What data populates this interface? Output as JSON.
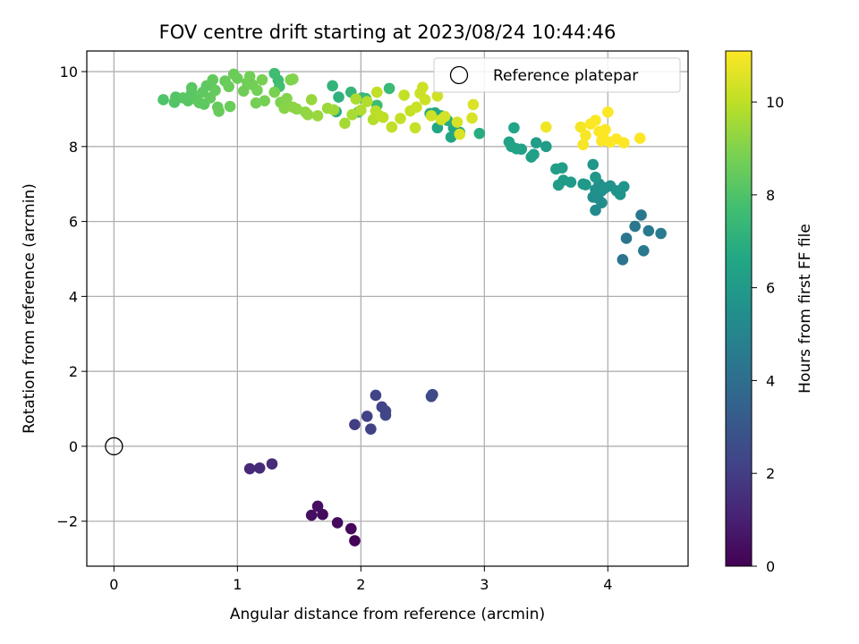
{
  "chart_data": {
    "type": "scatter",
    "title": "FOV centre drift starting at 2023/08/24 10:44:46",
    "xlabel": "Angular distance from reference (arcmin)",
    "ylabel": "Rotation from reference (arcmin)",
    "xlim": [
      -0.22,
      4.65
    ],
    "ylim": [
      -3.2,
      10.55
    ],
    "x_ticks": [
      0,
      1,
      2,
      3,
      4
    ],
    "y_ticks": [
      -2,
      0,
      2,
      4,
      6,
      8,
      10
    ],
    "x_tick_labels": [
      "0",
      "1",
      "2",
      "3",
      "4"
    ],
    "y_tick_labels": [
      "−2",
      "0",
      "2",
      "4",
      "6",
      "8",
      "10"
    ],
    "grid": true,
    "legend": {
      "position": "top-right",
      "entries": [
        "Reference platepar"
      ]
    },
    "reference_point": {
      "x": 0,
      "y": 0
    },
    "colorbar": {
      "label": "Hours from first FF file",
      "colormap": "viridis",
      "range": [
        0,
        11.1
      ],
      "ticks": [
        0,
        2,
        4,
        6,
        8,
        10
      ],
      "tick_labels": [
        "0",
        "2",
        "4",
        "6",
        "8",
        "10"
      ]
    },
    "points": [
      [
        1.95,
        -2.52,
        0.1
      ],
      [
        1.92,
        -2.2,
        0.2
      ],
      [
        1.81,
        -2.04,
        0.3
      ],
      [
        1.69,
        -1.82,
        0.35
      ],
      [
        1.6,
        -1.84,
        0.4
      ],
      [
        1.65,
        -1.6,
        0.45
      ],
      [
        1.1,
        -0.6,
        1.3
      ],
      [
        1.18,
        -0.58,
        1.35
      ],
      [
        1.28,
        -0.47,
        1.4
      ],
      [
        1.95,
        0.58,
        2.0
      ],
      [
        2.05,
        0.8,
        2.1
      ],
      [
        2.08,
        0.46,
        2.15
      ],
      [
        2.12,
        1.36,
        2.2
      ],
      [
        2.17,
        1.05,
        2.25
      ],
      [
        2.2,
        0.94,
        2.3
      ],
      [
        2.2,
        0.83,
        2.35
      ],
      [
        2.57,
        1.33,
        2.4
      ],
      [
        2.58,
        1.38,
        2.45
      ],
      [
        4.12,
        4.98,
        4.2
      ],
      [
        4.15,
        5.55,
        4.3
      ],
      [
        4.22,
        5.87,
        4.4
      ],
      [
        4.27,
        6.17,
        4.45
      ],
      [
        4.29,
        5.22,
        4.5
      ],
      [
        4.33,
        5.75,
        4.55
      ],
      [
        4.43,
        5.68,
        4.6
      ],
      [
        3.9,
        6.3,
        5.3
      ],
      [
        3.92,
        6.62,
        5.35
      ],
      [
        3.95,
        6.5,
        5.4
      ],
      [
        3.88,
        6.65,
        5.45
      ],
      [
        3.9,
        6.85,
        5.5
      ],
      [
        3.93,
        7.0,
        5.5
      ],
      [
        3.95,
        6.82,
        5.55
      ],
      [
        3.98,
        6.9,
        5.6
      ],
      [
        4.02,
        6.95,
        5.6
      ],
      [
        4.07,
        6.82,
        5.65
      ],
      [
        4.1,
        6.72,
        5.7
      ],
      [
        4.13,
        6.93,
        5.75
      ],
      [
        3.88,
        7.52,
        5.8
      ],
      [
        3.9,
        7.18,
        5.85
      ],
      [
        3.8,
        7.0,
        5.9
      ],
      [
        3.82,
        6.98,
        5.95
      ],
      [
        3.7,
        7.05,
        6.0
      ],
      [
        3.64,
        7.1,
        6.05
      ],
      [
        3.6,
        6.97,
        6.1
      ],
      [
        3.63,
        7.43,
        6.15
      ],
      [
        3.58,
        7.4,
        6.2
      ],
      [
        3.5,
        8.0,
        6.1
      ],
      [
        3.42,
        8.1,
        6.15
      ],
      [
        3.38,
        7.72,
        6.2
      ],
      [
        3.4,
        7.79,
        6.25
      ],
      [
        3.3,
        7.93,
        6.3
      ],
      [
        3.26,
        7.94,
        6.35
      ],
      [
        3.22,
        8.0,
        6.35
      ],
      [
        3.2,
        8.12,
        6.4
      ],
      [
        3.24,
        8.5,
        6.45
      ],
      [
        2.73,
        8.25,
        6.5
      ],
      [
        2.75,
        8.5,
        6.55
      ],
      [
        2.8,
        8.38,
        6.6
      ],
      [
        2.62,
        8.5,
        6.6
      ],
      [
        2.65,
        8.82,
        6.65
      ],
      [
        2.6,
        8.9,
        6.7
      ],
      [
        2.7,
        8.7,
        6.75
      ],
      [
        2.56,
        8.88,
        6.8
      ],
      [
        2.96,
        8.35,
        6.85
      ],
      [
        1.8,
        8.93,
        7.0
      ],
      [
        1.82,
        9.32,
        7.1
      ],
      [
        1.77,
        9.62,
        7.2
      ],
      [
        1.92,
        9.45,
        7.3
      ],
      [
        2.01,
        9.3,
        7.4
      ],
      [
        2.04,
        9.28,
        7.45
      ],
      [
        1.98,
        8.92,
        7.5
      ],
      [
        2.23,
        9.55,
        7.5
      ],
      [
        2.13,
        9.1,
        7.55
      ],
      [
        1.33,
        9.77,
        7.6
      ],
      [
        1.3,
        9.95,
        7.65
      ],
      [
        1.34,
        9.6,
        7.7
      ],
      [
        0.4,
        9.25,
        8.0
      ],
      [
        0.49,
        9.18,
        8.05
      ],
      [
        0.5,
        9.32,
        8.1
      ],
      [
        0.6,
        9.22,
        8.15
      ],
      [
        0.56,
        9.3,
        8.2
      ],
      [
        0.63,
        9.45,
        8.2
      ],
      [
        0.63,
        9.57,
        8.25
      ],
      [
        0.67,
        9.25,
        8.25
      ],
      [
        0.69,
        9.17,
        8.3
      ],
      [
        0.73,
        9.13,
        8.3
      ],
      [
        0.72,
        9.45,
        8.35
      ],
      [
        0.75,
        9.62,
        8.35
      ],
      [
        0.78,
        9.3,
        8.4
      ],
      [
        0.8,
        9.78,
        8.4
      ],
      [
        0.82,
        9.5,
        8.45
      ],
      [
        0.84,
        9.05,
        8.45
      ],
      [
        0.85,
        8.94,
        8.5
      ],
      [
        0.9,
        9.75,
        8.5
      ],
      [
        0.93,
        9.6,
        8.55
      ],
      [
        0.94,
        9.07,
        8.55
      ],
      [
        0.97,
        9.93,
        8.6
      ],
      [
        1.0,
        9.82,
        8.6
      ],
      [
        1.05,
        9.48,
        8.65
      ],
      [
        1.08,
        9.7,
        8.65
      ],
      [
        1.1,
        9.87,
        8.7
      ],
      [
        1.12,
        9.65,
        8.7
      ],
      [
        1.15,
        9.16,
        8.75
      ],
      [
        1.16,
        9.5,
        8.75
      ],
      [
        1.2,
        9.78,
        8.8
      ],
      [
        1.22,
        9.22,
        8.8
      ],
      [
        1.3,
        9.45,
        8.85
      ],
      [
        1.35,
        9.18,
        8.9
      ],
      [
        1.43,
        9.78,
        8.95
      ],
      [
        1.45,
        9.8,
        9.0
      ],
      [
        1.4,
        9.28,
        9.05
      ],
      [
        1.38,
        9.02,
        9.1
      ],
      [
        1.45,
        9.05,
        9.15
      ],
      [
        1.48,
        9.0,
        9.2
      ],
      [
        1.55,
        8.92,
        9.25
      ],
      [
        1.57,
        8.85,
        9.3
      ],
      [
        1.6,
        9.25,
        9.35
      ],
      [
        1.65,
        8.82,
        9.4
      ],
      [
        1.73,
        9.02,
        9.45
      ],
      [
        1.78,
        8.98,
        9.5
      ],
      [
        1.87,
        8.62,
        9.6
      ],
      [
        1.93,
        8.85,
        9.65
      ],
      [
        1.96,
        9.27,
        9.7
      ],
      [
        2.0,
        8.97,
        9.75
      ],
      [
        2.05,
        9.2,
        9.8
      ],
      [
        2.1,
        8.72,
        9.85
      ],
      [
        2.12,
        8.95,
        9.9
      ],
      [
        2.15,
        8.82,
        9.95
      ],
      [
        2.18,
        8.78,
        10.0
      ],
      [
        2.13,
        9.45,
        10.05
      ],
      [
        2.25,
        8.52,
        10.05
      ],
      [
        2.32,
        8.75,
        10.1
      ],
      [
        2.35,
        9.37,
        10.1
      ],
      [
        2.4,
        8.95,
        10.15
      ],
      [
        2.44,
        8.5,
        10.15
      ],
      [
        2.45,
        9.05,
        10.2
      ],
      [
        2.48,
        9.42,
        10.2
      ],
      [
        2.5,
        9.58,
        10.25
      ],
      [
        2.52,
        9.25,
        10.25
      ],
      [
        2.57,
        8.82,
        10.3
      ],
      [
        2.62,
        9.35,
        10.3
      ],
      [
        2.65,
        8.72,
        10.35
      ],
      [
        2.68,
        8.8,
        10.35
      ],
      [
        2.78,
        8.65,
        10.4
      ],
      [
        2.8,
        8.33,
        10.45
      ],
      [
        2.9,
        8.76,
        10.45
      ],
      [
        2.91,
        9.12,
        10.5
      ],
      [
        3.5,
        8.52,
        10.9
      ],
      [
        3.78,
        8.52,
        10.95
      ],
      [
        3.8,
        8.05,
        11.0
      ],
      [
        3.82,
        8.3,
        11.0
      ],
      [
        3.86,
        8.6,
        11.05
      ],
      [
        3.9,
        8.7,
        11.05
      ],
      [
        3.93,
        8.4,
        11.05
      ],
      [
        3.95,
        8.15,
        11.05
      ],
      [
        3.98,
        8.45,
        11.1
      ],
      [
        4.02,
        8.12,
        11.1
      ],
      [
        3.96,
        8.32,
        11.1
      ],
      [
        4.0,
        8.92,
        11.1
      ],
      [
        4.07,
        8.2,
        11.1
      ],
      [
        4.13,
        8.1,
        11.1
      ],
      [
        4.26,
        8.22,
        11.1
      ]
    ]
  }
}
